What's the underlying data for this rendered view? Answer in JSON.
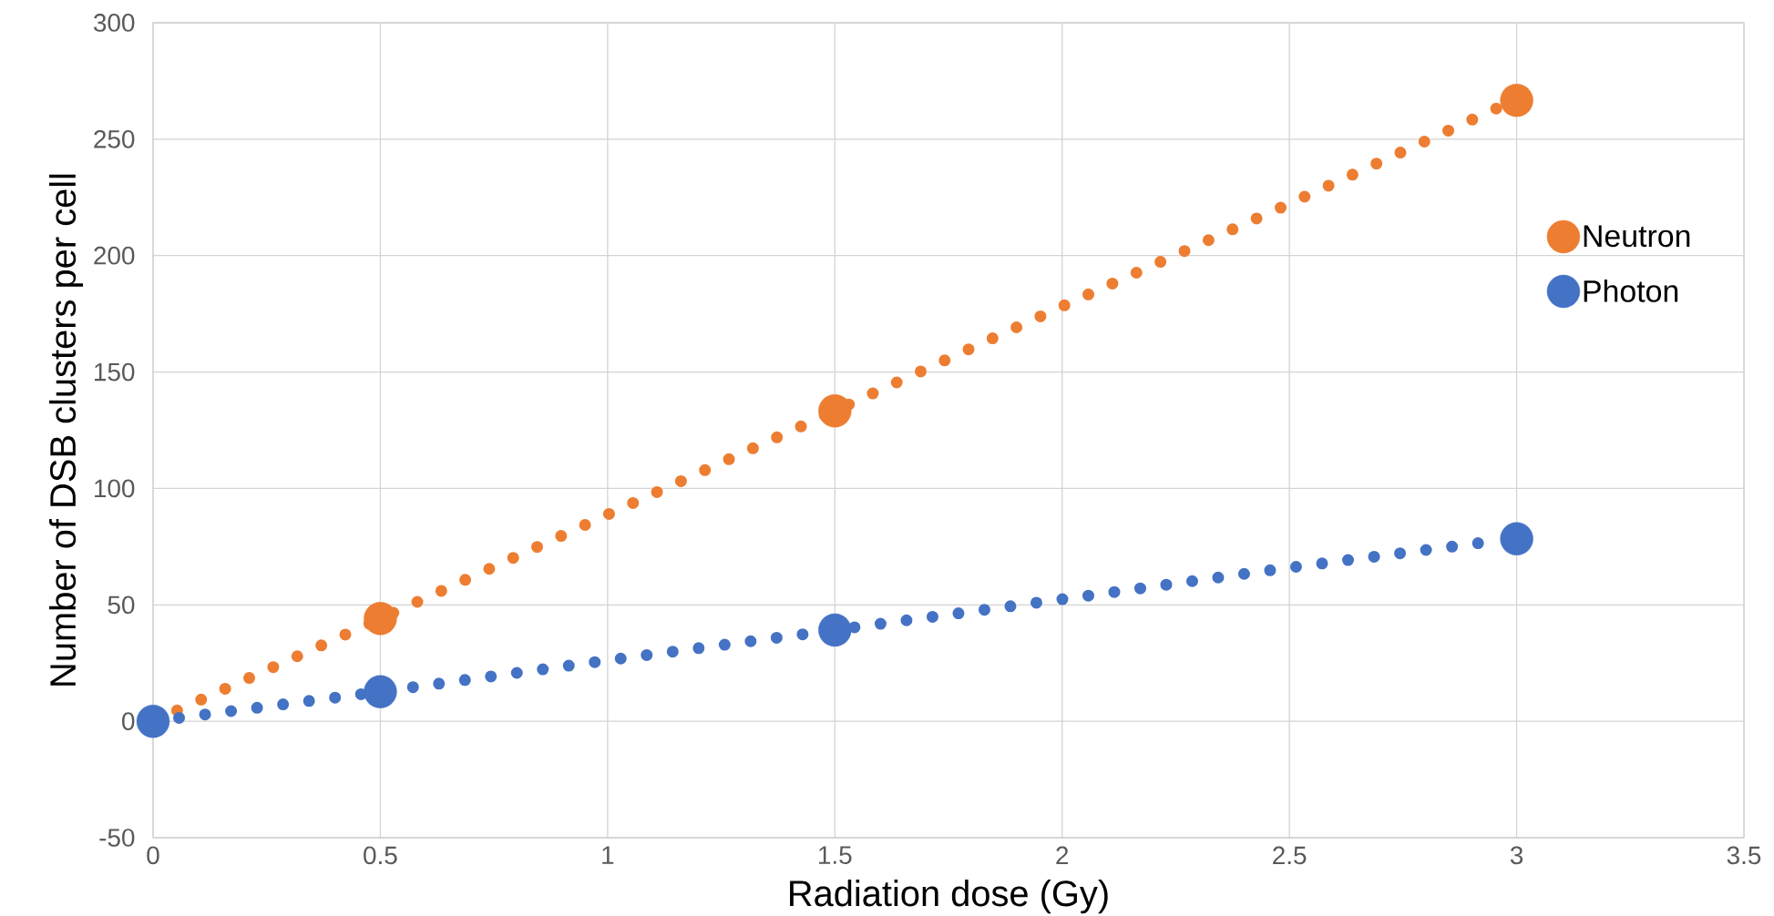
{
  "chart_data": {
    "type": "scatter",
    "xlabel": "Radiation dose (Gy)",
    "ylabel": "Number of DSB clusters per cell",
    "xlim": [
      0,
      3.5
    ],
    "xticks": [
      0,
      0.5,
      1,
      1.5,
      2,
      2.5,
      3,
      3.5
    ],
    "ylim": [
      -50,
      300
    ],
    "yticks": [
      -50,
      0,
      50,
      100,
      150,
      200,
      250,
      300
    ],
    "grid": true,
    "legend": "right",
    "marker": "circle",
    "series": [
      {
        "type": "line",
        "line_style": "dotted",
        "marker": "none",
        "color": "#ed7d31",
        "x": [
          0,
          0.5,
          0.988,
          1.5,
          2.03,
          2.5,
          2.96
        ],
        "values": [
          0,
          44,
          87.7,
          133.3,
          180.9,
          222.3,
          263.6
        ]
      },
      {
        "type": "line",
        "line_style": "dotted",
        "marker": "none",
        "color": "#4472c4",
        "x": [
          0,
          0.5,
          1.02,
          1.5,
          2.03,
          2.47,
          2.92
        ],
        "values": [
          0,
          12.7,
          26.7,
          39.2,
          53.2,
          65.2,
          76.6
        ]
      },
      {
        "name": "Neutron",
        "color": "#ed7d31",
        "x": [
          0.5,
          1.5,
          3
        ],
        "values": [
          44.1,
          133.3,
          266.7
        ]
      },
      {
        "name": "Photon",
        "color": "#4472c4",
        "x": [
          0,
          0.5,
          1.5,
          3
        ],
        "values": [
          0,
          12.7,
          39.2,
          78.4
        ]
      }
    ]
  }
}
